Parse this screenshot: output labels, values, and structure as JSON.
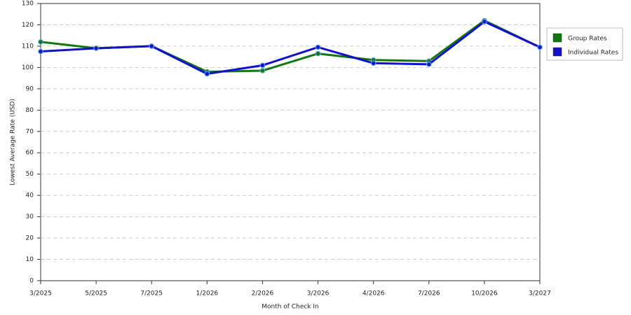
{
  "chart_data": {
    "type": "line",
    "x_label": "Month of Check In",
    "y_label": "Lowest Average Rate (USD)",
    "categories": [
      "3/2025",
      "5/2025",
      "7/2025",
      "1/2026",
      "2/2026",
      "3/2026",
      "4/2026",
      "7/2026",
      "10/2026",
      "3/2027"
    ],
    "series": [
      {
        "name": "Group Rates",
        "color": "#117711",
        "values": [
          112,
          109,
          110,
          98,
          98.5,
          106.5,
          103.5,
          103,
          122,
          109.5
        ]
      },
      {
        "name": "Individual Rates",
        "color": "#1111cc",
        "values": [
          107.5,
          109,
          110,
          97,
          101,
          109.5,
          102,
          101.5,
          121.5,
          109.5
        ]
      }
    ],
    "ylim": [
      0,
      130
    ],
    "yticks": [
      0,
      10,
      20,
      30,
      40,
      50,
      60,
      70,
      80,
      90,
      100,
      110,
      120,
      130
    ],
    "grid": true,
    "legend": "right"
  }
}
